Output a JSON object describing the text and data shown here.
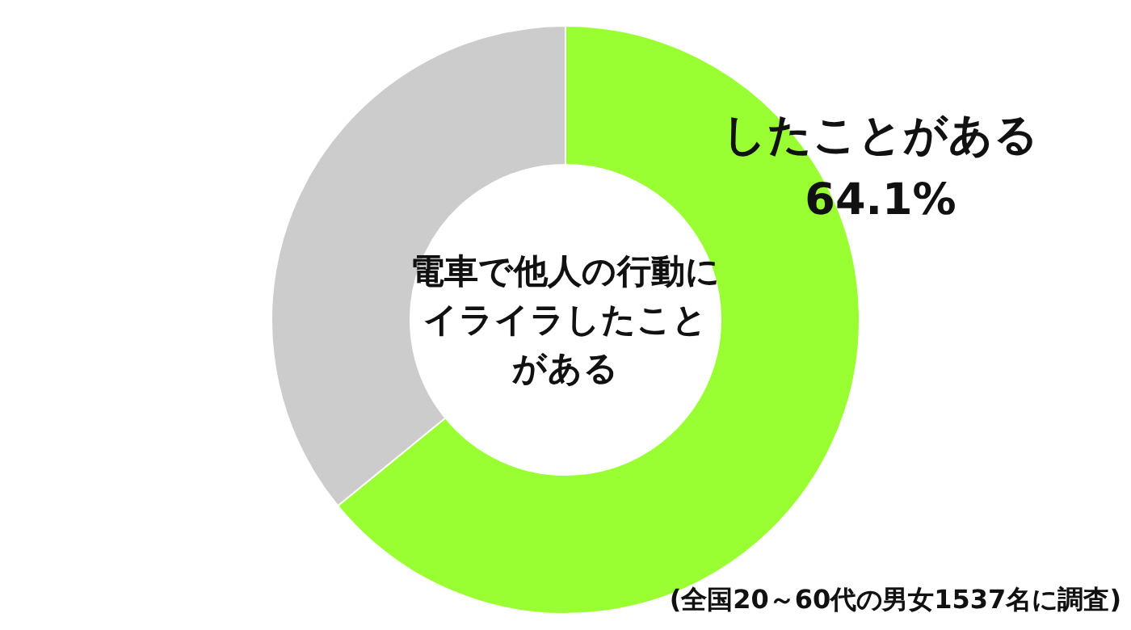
{
  "chart_data": {
    "type": "donut",
    "title": "電車で他人の行動にイライラしたことがある",
    "categories": [
      "したことがある",
      null
    ],
    "values": [
      64.1,
      35.9
    ],
    "colors": [
      "#99ff33",
      "#cccccc"
    ],
    "value_labels": [
      "64.1%",
      null
    ],
    "annotations": [
      "(全国20～60代の男女1537名に調査)"
    ]
  }
}
